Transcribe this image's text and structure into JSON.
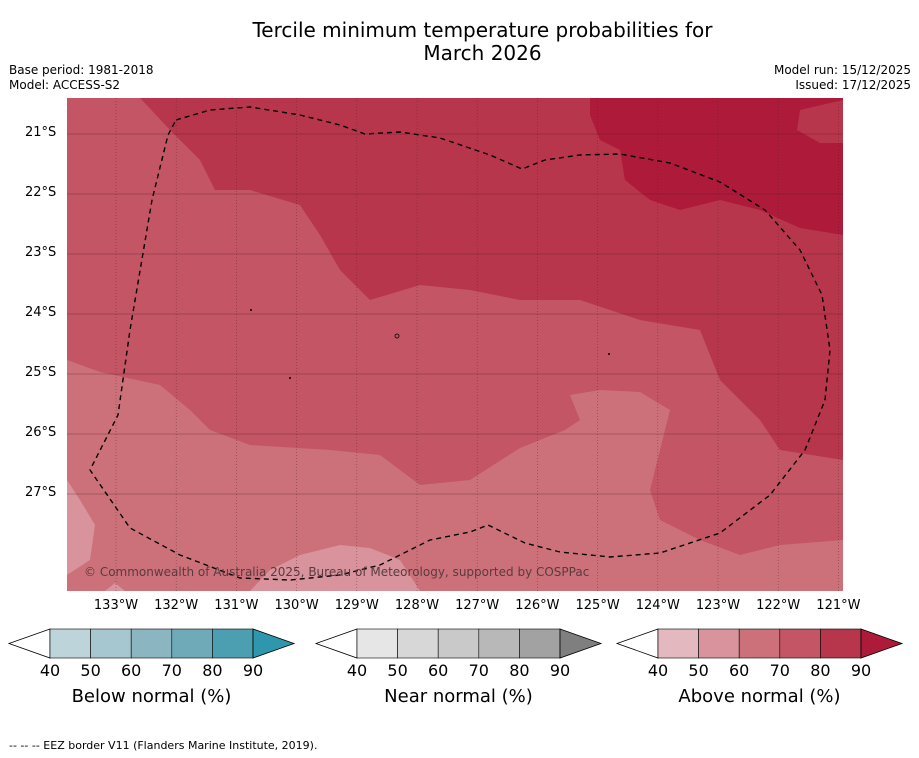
{
  "title_line1": "Tercile minimum temperature probabilities for",
  "title_line2": "March 2026",
  "base_period": "Base period: 1981-2018",
  "model": "Model: ACCESS-S2",
  "model_run": "Model run: 15/12/2025",
  "issued": "Issued: 17/12/2025",
  "latitudes": [
    "21°S",
    "22°S",
    "23°S",
    "24°S",
    "25°S",
    "26°S",
    "27°S"
  ],
  "longitudes": [
    "133°W",
    "132°W",
    "131°W",
    "130°W",
    "129°W",
    "128°W",
    "127°W",
    "126°W",
    "125°W",
    "124°W",
    "123°W",
    "122°W",
    "121°W"
  ],
  "copyright": "© Commonwealth of Australia 2025, Bureau of Meteorology, supported by COSPPac",
  "colorbars": [
    {
      "label": "Below normal (%)",
      "colors": [
        "#bcd4da",
        "#a6c7cf",
        "#8bb6c1",
        "#6eaab8",
        "#4b9fb0",
        "#2f97ad"
      ],
      "ticks": [
        "40",
        "50",
        "60",
        "70",
        "80",
        "90"
      ]
    },
    {
      "label": "Near normal (%)",
      "colors": [
        "#e6e6e6",
        "#d7d7d7",
        "#c9c9c9",
        "#b8b8b8",
        "#a2a2a2",
        "#7f7f7f"
      ],
      "ticks": [
        "40",
        "50",
        "60",
        "70",
        "80",
        "90"
      ]
    },
    {
      "label": "Above normal (%)",
      "colors": [
        "#e4b8bf",
        "#d8939c",
        "#cc7179",
        "#c35565",
        "#b8364b",
        "#ad1a3a"
      ],
      "ticks": [
        "40",
        "50",
        "60",
        "70",
        "80",
        "90"
      ]
    }
  ],
  "footer": "--  --  -- EEZ border V11 (Flanders Marine Institute, 2019)."
}
